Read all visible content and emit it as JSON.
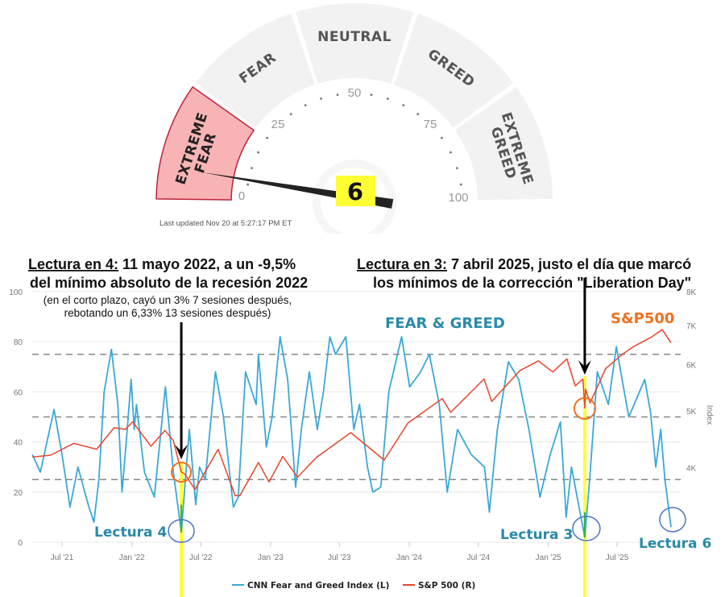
{
  "gauge": {
    "segments": [
      "EXTREME FEAR",
      "FEAR",
      "NEUTRAL",
      "GREED",
      "EXTREME GREED"
    ],
    "scale_labels": [
      "0",
      "25",
      "50",
      "75",
      "100"
    ],
    "value": 6,
    "value_label": "6",
    "updated": "Last updated Nov 20 at 5:27:17 PM ET",
    "colors": {
      "active_fill": "#f8b4b4",
      "active_border": "#c0203a",
      "inactive": "#f2f2f2",
      "value_bg": "#ffff33"
    }
  },
  "annotations": {
    "left_title_bold": "Lectura en 4:",
    "left_title_rest": " 11 mayo 2022, a un -9,5%",
    "left_line2": "del mínimo absoluto de la recesión 2022",
    "left_note1": "(en el corto plazo, cayó un 3% 7 sesiones después,",
    "left_note2": "rebotando un 6,33% 13 sesiones después)",
    "right_title_bold": "Lectura en 3:",
    "right_title_rest": " 7 abril 2025, justo el día que marcó",
    "right_line2": "los mínimos de la corrección \"Liberation Day\"",
    "fg_label": "FEAR & GREED",
    "sp_label": "S&P500",
    "lectura4": "Lectura 4",
    "lectura3": "Lectura 3",
    "lectura6": "Lectura 6",
    "markers": [
      {
        "date": "2022-05-11"
      },
      {
        "date": "2025-04-07"
      }
    ],
    "colors": {
      "arrow": "#000000",
      "highlight": "#ffff33",
      "orange_circle": "#f07020",
      "blue_circle": "#4a74c9",
      "label": "#2a8aa8"
    }
  },
  "chart_data": {
    "type": "line",
    "x_type": "date",
    "x_ticks": [
      {
        "date": "2021-07-01",
        "label": "Jul '21"
      },
      {
        "date": "2022-01-01",
        "label": "Jan '22"
      },
      {
        "date": "2022-07-01",
        "label": "Jul '22"
      },
      {
        "date": "2023-01-01",
        "label": "Jan '23"
      },
      {
        "date": "2023-07-01",
        "label": "Jul '23"
      },
      {
        "date": "2024-01-01",
        "label": "Jan '24"
      },
      {
        "date": "2024-07-01",
        "label": "Jul '24"
      },
      {
        "date": "2025-01-01",
        "label": "Jan '25"
      },
      {
        "date": "2025-07-01",
        "label": "Jul '25"
      }
    ],
    "y_left": {
      "ticks": [
        "0",
        "20",
        "40",
        "60",
        "80",
        "100"
      ],
      "range": [
        0,
        100
      ],
      "reference_lines": [
        25,
        50,
        75
      ]
    },
    "y_right": {
      "label": "Index",
      "scale": "log",
      "ticks": [
        {
          "v": 4000,
          "label": "4K"
        },
        {
          "v": 5000,
          "label": "5K"
        },
        {
          "v": 6000,
          "label": "6K"
        },
        {
          "v": 7000,
          "label": "7K"
        },
        {
          "v": 8000,
          "label": "8K"
        }
      ]
    },
    "grid": true,
    "legend_position": "bottom",
    "series": [
      {
        "name": "CNN Fear and Greed Index (L)",
        "color": "#3aa8d8",
        "axis": "left",
        "points": [
          [
            "2021-04-14",
            35
          ],
          [
            "2021-05-05",
            28
          ],
          [
            "2021-06-10",
            53
          ],
          [
            "2021-07-01",
            35
          ],
          [
            "2021-07-22",
            14
          ],
          [
            "2021-08-12",
            30
          ],
          [
            "2021-09-08",
            15
          ],
          [
            "2021-09-23",
            8
          ],
          [
            "2021-10-06",
            25
          ],
          [
            "2021-10-20",
            60
          ],
          [
            "2021-11-08",
            77
          ],
          [
            "2021-11-25",
            55
          ],
          [
            "2021-12-06",
            20
          ],
          [
            "2021-12-17",
            40
          ],
          [
            "2021-12-30",
            65
          ],
          [
            "2022-01-07",
            45
          ],
          [
            "2022-01-13",
            55
          ],
          [
            "2022-02-03",
            28
          ],
          [
            "2022-03-01",
            18
          ],
          [
            "2022-03-30",
            62
          ],
          [
            "2022-04-20",
            28
          ],
          [
            "2022-05-11",
            4
          ],
          [
            "2022-06-01",
            45
          ],
          [
            "2022-06-18",
            15
          ],
          [
            "2022-06-28",
            30
          ],
          [
            "2022-07-13",
            25
          ],
          [
            "2022-08-09",
            68
          ],
          [
            "2022-08-30",
            50
          ],
          [
            "2022-09-25",
            14
          ],
          [
            "2022-10-08",
            18
          ],
          [
            "2022-10-27",
            68
          ],
          [
            "2022-11-24",
            55
          ],
          [
            "2022-11-30",
            75
          ],
          [
            "2022-12-21",
            38
          ],
          [
            "2023-01-05",
            50
          ],
          [
            "2023-01-26",
            82
          ],
          [
            "2023-02-15",
            65
          ],
          [
            "2023-03-08",
            22
          ],
          [
            "2023-03-23",
            45
          ],
          [
            "2023-04-13",
            68
          ],
          [
            "2023-05-04",
            45
          ],
          [
            "2023-05-20",
            60
          ],
          [
            "2023-06-06",
            82
          ],
          [
            "2023-06-21",
            75
          ],
          [
            "2023-07-18",
            82
          ],
          [
            "2023-08-08",
            45
          ],
          [
            "2023-08-23",
            55
          ],
          [
            "2023-09-13",
            30
          ],
          [
            "2023-09-27",
            20
          ],
          [
            "2023-10-18",
            22
          ],
          [
            "2023-11-08",
            60
          ],
          [
            "2023-12-12",
            82
          ],
          [
            "2024-01-02",
            62
          ],
          [
            "2024-01-31",
            68
          ],
          [
            "2024-02-23",
            75
          ],
          [
            "2024-03-20",
            55
          ],
          [
            "2024-04-10",
            20
          ],
          [
            "2024-05-07",
            45
          ],
          [
            "2024-06-12",
            35
          ],
          [
            "2024-07-17",
            30
          ],
          [
            "2024-07-30",
            12
          ],
          [
            "2024-08-20",
            45
          ],
          [
            "2024-09-18",
            72
          ],
          [
            "2024-10-15",
            65
          ],
          [
            "2024-11-11",
            45
          ],
          [
            "2024-12-10",
            18
          ],
          [
            "2025-01-06",
            35
          ],
          [
            "2025-02-02",
            48
          ],
          [
            "2025-02-17",
            10
          ],
          [
            "2025-03-03",
            30
          ],
          [
            "2025-04-07",
            2
          ],
          [
            "2025-04-20",
            25
          ],
          [
            "2025-05-10",
            68
          ],
          [
            "2025-06-08",
            55
          ],
          [
            "2025-06-29",
            78
          ],
          [
            "2025-07-20",
            60
          ],
          [
            "2025-08-01",
            50
          ],
          [
            "2025-09-12",
            65
          ],
          [
            "2025-09-27",
            52
          ],
          [
            "2025-10-11",
            30
          ],
          [
            "2025-10-24",
            45
          ],
          [
            "2025-11-04",
            25
          ],
          [
            "2025-11-20",
            6
          ]
        ]
      },
      {
        "name": "S&P 500 (R)",
        "color": "#e8452c",
        "axis": "right",
        "points": [
          [
            "2021-04-14",
            4170
          ],
          [
            "2021-06-01",
            4200
          ],
          [
            "2021-08-01",
            4400
          ],
          [
            "2021-09-30",
            4300
          ],
          [
            "2021-11-15",
            4680
          ],
          [
            "2021-12-15",
            4650
          ],
          [
            "2022-01-03",
            4790
          ],
          [
            "2022-02-20",
            4350
          ],
          [
            "2022-03-29",
            4630
          ],
          [
            "2022-04-20",
            4450
          ],
          [
            "2022-05-11",
            3930
          ],
          [
            "2022-05-20",
            3900
          ],
          [
            "2022-06-16",
            3670
          ],
          [
            "2022-08-16",
            4300
          ],
          [
            "2022-09-30",
            3580
          ],
          [
            "2022-10-12",
            3580
          ],
          [
            "2022-11-30",
            4080
          ],
          [
            "2022-12-28",
            3780
          ],
          [
            "2023-02-02",
            4180
          ],
          [
            "2023-03-13",
            3850
          ],
          [
            "2023-05-01",
            4160
          ],
          [
            "2023-07-31",
            4590
          ],
          [
            "2023-10-27",
            4120
          ],
          [
            "2023-12-29",
            4770
          ],
          [
            "2024-03-28",
            5250
          ],
          [
            "2024-04-19",
            4970
          ],
          [
            "2024-07-16",
            5670
          ],
          [
            "2024-08-05",
            5190
          ],
          [
            "2024-10-18",
            5860
          ],
          [
            "2024-12-06",
            6090
          ],
          [
            "2025-01-13",
            5830
          ],
          [
            "2025-02-19",
            6140
          ],
          [
            "2025-03-13",
            5520
          ],
          [
            "2025-04-02",
            5670
          ],
          [
            "2025-04-07",
            5060
          ],
          [
            "2025-04-09",
            5450
          ],
          [
            "2025-04-21",
            5160
          ],
          [
            "2025-06-01",
            5910
          ],
          [
            "2025-07-15",
            6250
          ],
          [
            "2025-08-15",
            6450
          ],
          [
            "2025-09-30",
            6690
          ],
          [
            "2025-10-28",
            6890
          ],
          [
            "2025-11-20",
            6540
          ]
        ]
      }
    ]
  }
}
